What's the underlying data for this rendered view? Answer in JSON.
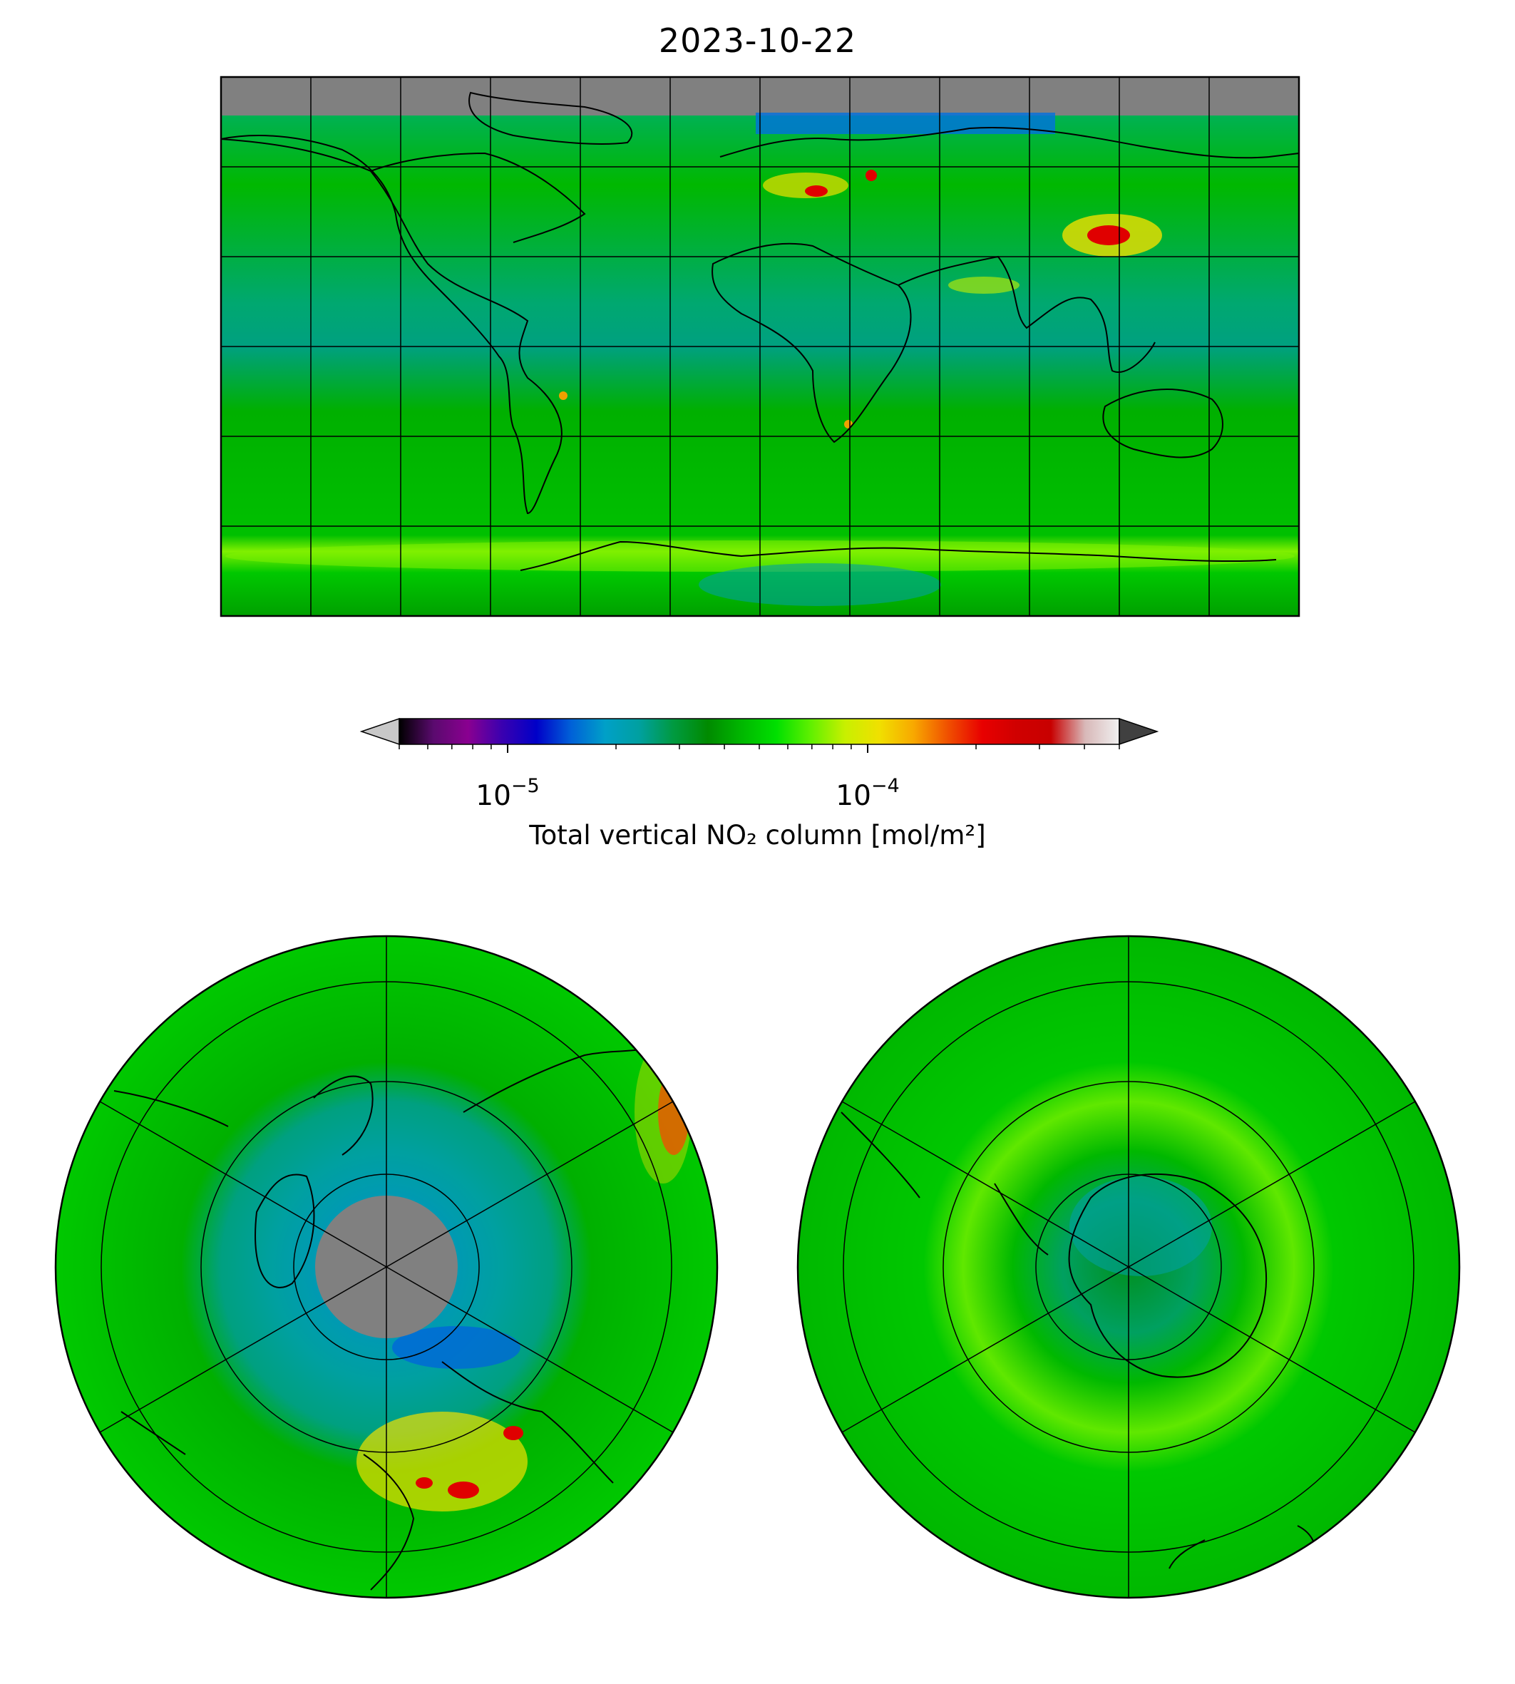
{
  "figure": {
    "title": "2023-10-22",
    "colorbar": {
      "label": "Total vertical NO₂ column [mol/m²]",
      "scale": "log",
      "range": [
        5e-06,
        0.0005
      ],
      "extend": "both",
      "ticks": [
        {
          "value": 1e-05,
          "base": "10",
          "exp": "−5"
        },
        {
          "value": 0.0001,
          "base": "10",
          "exp": "−4"
        }
      ],
      "colors": [
        "#000000",
        "#5a0a6e",
        "#8a0090",
        "#3a00b0",
        "#0000c8",
        "#0060d8",
        "#00a0c8",
        "#00a0a0",
        "#009a40",
        "#008a00",
        "#00b800",
        "#00e000",
        "#60f000",
        "#c8f000",
        "#f0e000",
        "#f8a800",
        "#f05000",
        "#e80000",
        "#d00000",
        "#c80000",
        "#d8b8b8",
        "#f0f0f0"
      ],
      "under_color": "#c8c8c8",
      "over_color": "#404040"
    },
    "panels": [
      {
        "name": "global",
        "projection": "plate-carree",
        "background": "#00b800",
        "nodata_color": "#808080",
        "hotspot_color": "#e00000"
      },
      {
        "name": "north-polar",
        "projection": "north-polar-stereographic",
        "background": "#00c000",
        "nodata_color": "#808080"
      },
      {
        "name": "south-polar",
        "projection": "south-polar-stereographic",
        "background": "#00c000"
      }
    ]
  }
}
